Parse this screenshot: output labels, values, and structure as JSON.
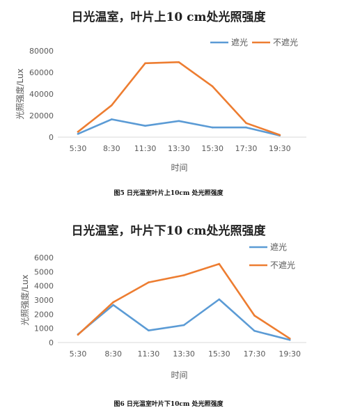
{
  "charts": [
    {
      "title": "日光温室，叶片上10 cm处光照强度",
      "caption": "图5 日光温室叶片上10cm 处光照强度"
    },
    {
      "title": "日光温室，叶片下10 cm处光照强度",
      "caption": "图6 日光温室叶片下10cm 处光照强度"
    }
  ],
  "chart_data": [
    {
      "type": "line",
      "title": "日光温室，叶片上10 cm处光照强度",
      "xlabel": "时间",
      "ylabel": "光照强度/Lux",
      "categories": [
        "5:30",
        "8:30",
        "11:30",
        "13:30",
        "15:30",
        "17:30",
        "19:30"
      ],
      "ylim": [
        0,
        80000
      ],
      "yticks": [
        "0",
        "20000",
        "40000",
        "60000",
        "80000"
      ],
      "grid": false,
      "legend_position": "top-right",
      "series": [
        {
          "name": "遮光",
          "color": "#5B9BD5",
          "values": [
            3000,
            16500,
            10500,
            15000,
            9000,
            9000,
            1500
          ]
        },
        {
          "name": "不遮光",
          "color": "#ED7D31",
          "values": [
            5000,
            29500,
            68500,
            69500,
            47000,
            13000,
            2000
          ]
        }
      ]
    },
    {
      "type": "line",
      "title": "日光温室，叶片下10 cm处光照强度",
      "xlabel": "时间",
      "ylabel": "光照强度/Lux",
      "categories": [
        "5:30",
        "8:30",
        "11:30",
        "13:30",
        "15:30",
        "17:30",
        "19:30"
      ],
      "ylim": [
        0,
        6000
      ],
      "yticks": [
        "0",
        "1000",
        "2000",
        "3000",
        "4000",
        "5000",
        "6000"
      ],
      "grid": false,
      "legend_position": "right",
      "series": [
        {
          "name": "遮光",
          "color": "#5B9BD5",
          "values": [
            580,
            2650,
            850,
            1230,
            3050,
            820,
            180
          ]
        },
        {
          "name": "不遮光",
          "color": "#ED7D31",
          "values": [
            550,
            2850,
            4250,
            4750,
            5550,
            1900,
            280
          ]
        }
      ]
    }
  ]
}
